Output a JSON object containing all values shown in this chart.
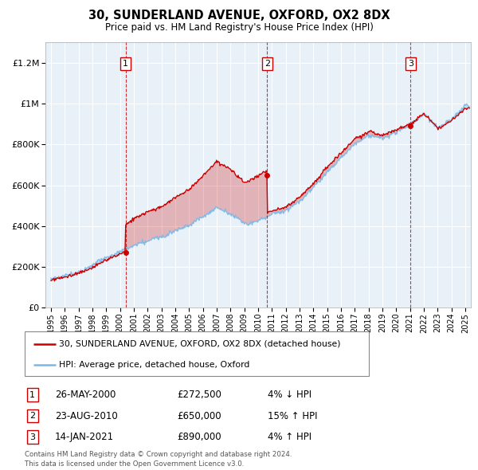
{
  "title": "30, SUNDERLAND AVENUE, OXFORD, OX2 8DX",
  "subtitle": "Price paid vs. HM Land Registry's House Price Index (HPI)",
  "footer": "Contains HM Land Registry data © Crown copyright and database right 2024.\nThis data is licensed under the Open Government Licence v3.0.",
  "legend_line1": "30, SUNDERLAND AVENUE, OXFORD, OX2 8DX (detached house)",
  "legend_line2": "HPI: Average price, detached house, Oxford",
  "transactions": [
    {
      "id": 1,
      "date": "26-MAY-2000",
      "price": 272500,
      "pct": "4%",
      "dir": "↓",
      "year": 2000.4
    },
    {
      "id": 2,
      "date": "23-AUG-2010",
      "price": 650000,
      "pct": "15%",
      "dir": "↑",
      "year": 2010.65
    },
    {
      "id": 3,
      "date": "14-JAN-2021",
      "price": 890000,
      "pct": "4%",
      "dir": "↑",
      "year": 2021.04
    }
  ],
  "hpi_color": "#7ab8e8",
  "price_color": "#cc0000",
  "vline_color": "#cc0000",
  "plot_bg": "#e8f0f8",
  "ylim": [
    0,
    1300000
  ],
  "yticks": [
    0,
    200000,
    400000,
    600000,
    800000,
    1000000,
    1200000
  ],
  "xlim_start": 1994.6,
  "xlim_end": 2025.4,
  "xticks": [
    1995,
    1996,
    1997,
    1998,
    1999,
    2000,
    2001,
    2002,
    2003,
    2004,
    2005,
    2006,
    2007,
    2008,
    2009,
    2010,
    2011,
    2012,
    2013,
    2014,
    2015,
    2016,
    2017,
    2018,
    2019,
    2020,
    2021,
    2022,
    2023,
    2024,
    2025
  ]
}
